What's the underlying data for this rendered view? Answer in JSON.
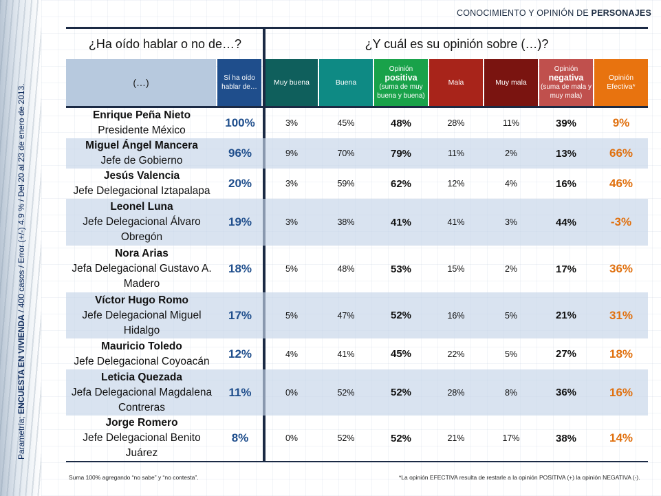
{
  "side_caption": {
    "prefix": "Parametría; ",
    "bold": "ENCUESTA EN VIVIENDA",
    "rest": " / 400 casos / Error (+/-) 4.9 % / Del 20 al 23 de enero de 2013."
  },
  "section_title": {
    "normal": "CONOCIMIENTO Y OPINIÓN DE ",
    "bold": "PERSONAJES"
  },
  "question_left": "¿Ha oído hablar o no de…?",
  "question_right": "¿Y cuál es su opinión sobre (…)?",
  "headers": {
    "name": "(…)",
    "heard": "Sí ha oído hablar de…",
    "very_good": "Muy buena",
    "good": "Buena",
    "positive_top": "Opinión",
    "positive_big": "positiva",
    "positive_sub": "(suma de muy buena y buena)",
    "bad": "Mala",
    "very_bad": "Muy mala",
    "negative_top": "Opinión",
    "negative_big": "negativa",
    "negative_sub": "(suma de mala y muy mala)",
    "effective": "Opinión Efectiva*"
  },
  "rows": [
    {
      "name": "Enrique Peña Nieto",
      "role": "Presidente México",
      "heard": "100%",
      "very_good": "3%",
      "good": "45%",
      "positive": "48%",
      "bad": "28%",
      "very_bad": "11%",
      "negative": "39%",
      "effective": "9%"
    },
    {
      "name": "Miguel Ángel Mancera",
      "role": "Jefe de Gobierno",
      "heard": "96%",
      "very_good": "9%",
      "good": "70%",
      "positive": "79%",
      "bad": "11%",
      "very_bad": "2%",
      "negative": "13%",
      "effective": "66%"
    },
    {
      "name": "Jesús Valencia",
      "role": "Jefe Delegacional Iztapalapa",
      "heard": "20%",
      "very_good": "3%",
      "good": "59%",
      "positive": "62%",
      "bad": "12%",
      "very_bad": "4%",
      "negative": "16%",
      "effective": "46%"
    },
    {
      "name": "Leonel Luna",
      "role": "Jefe Delegacional Álvaro Obregón",
      "heard": "19%",
      "very_good": "3%",
      "good": "38%",
      "positive": "41%",
      "bad": "41%",
      "very_bad": "3%",
      "negative": "44%",
      "effective": "-3%"
    },
    {
      "name": "Nora Arias",
      "role": "Jefa Delegacional Gustavo A. Madero",
      "heard": "18%",
      "very_good": "5%",
      "good": "48%",
      "positive": "53%",
      "bad": "15%",
      "very_bad": "2%",
      "negative": "17%",
      "effective": "36%"
    },
    {
      "name": "Víctor Hugo Romo",
      "role": "Jefe Delegacional Miguel Hidalgo",
      "heard": "17%",
      "very_good": "5%",
      "good": "47%",
      "positive": "52%",
      "bad": "16%",
      "very_bad": "5%",
      "negative": "21%",
      "effective": "31%"
    },
    {
      "name": "Mauricio Toledo",
      "role": "Jefe Delegacional Coyoacán",
      "heard": "12%",
      "very_good": "4%",
      "good": "41%",
      "positive": "45%",
      "bad": "22%",
      "very_bad": "5%",
      "negative": "27%",
      "effective": "18%"
    },
    {
      "name": "Leticia Quezada",
      "role": "Jefa Delegacional Magdalena Contreras",
      "heard": "11%",
      "very_good": "0%",
      "good": "52%",
      "positive": "52%",
      "bad": "28%",
      "very_bad": "8%",
      "negative": "36%",
      "effective": "16%"
    },
    {
      "name": "Jorge Romero",
      "role": "Jefe Delegacional Benito Juárez",
      "heard": "8%",
      "very_good": "0%",
      "good": "52%",
      "positive": "52%",
      "bad": "21%",
      "very_bad": "17%",
      "negative": "38%",
      "effective": "14%"
    }
  ],
  "footnote_left": "Suma 100%  agregando “no sabe” y “no contesta”.",
  "footnote_right": "*La opinión EFECTIVA resulta de restarle a la opinión POSITIVA (+) la opinión NEGATIVA (-)."
}
